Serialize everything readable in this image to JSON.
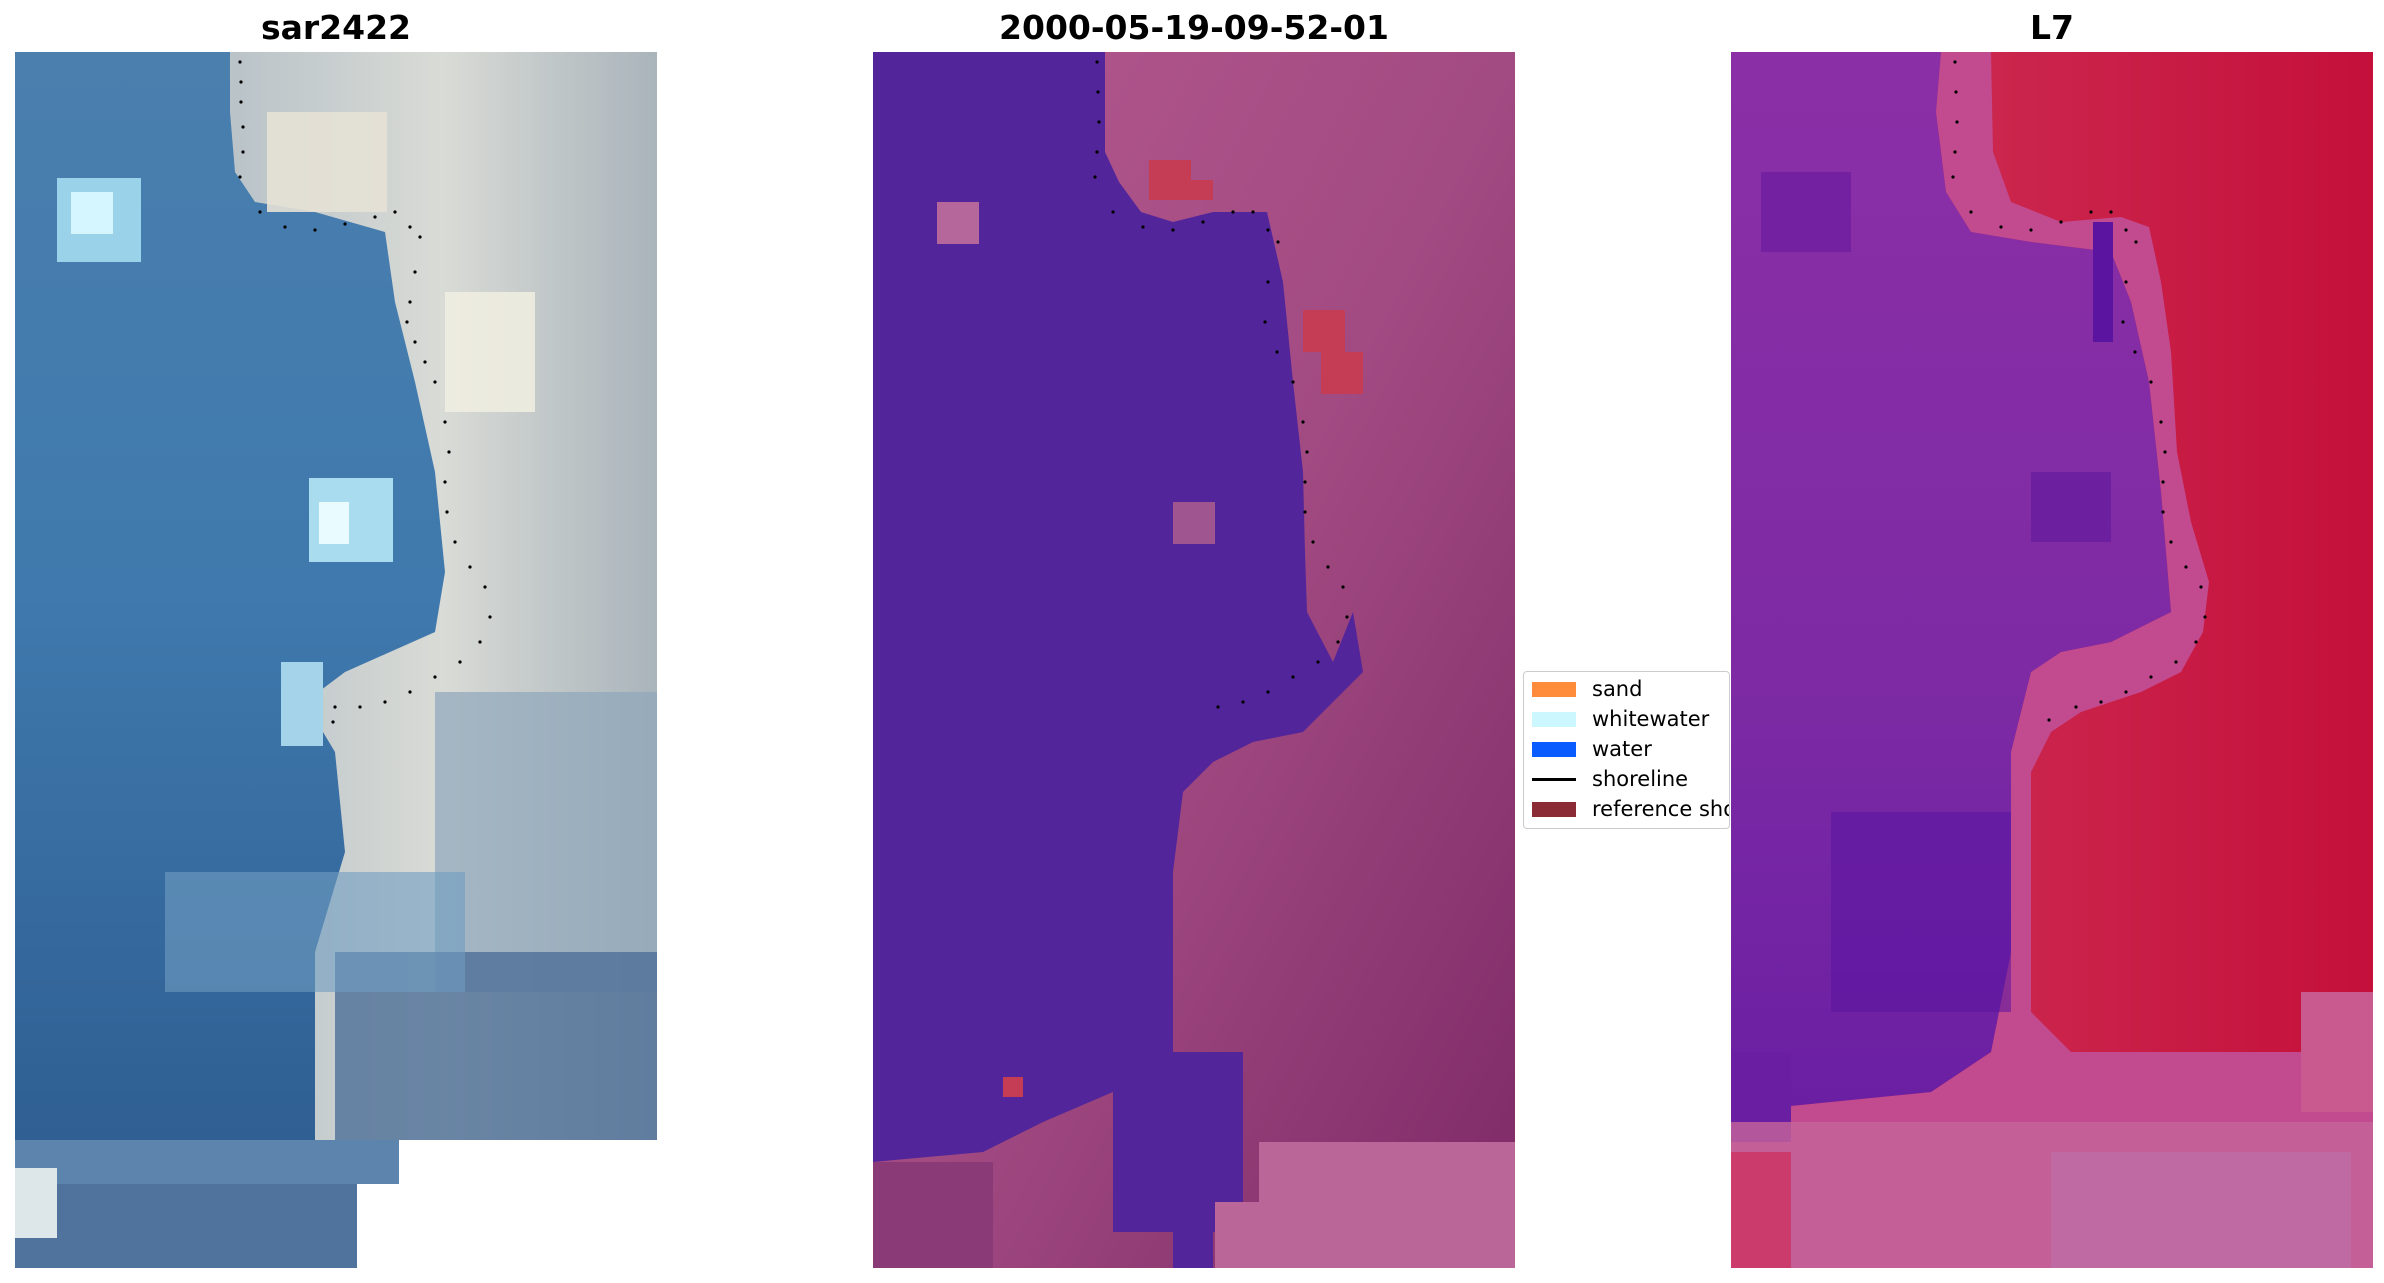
{
  "panels": [
    {
      "title": "sar2422",
      "image": "RGB satellite image of coastline"
    },
    {
      "title": "2000-05-19-09-52-01",
      "image": "classified image with water mask"
    },
    {
      "title": "L7",
      "image": "MNDWI index image"
    }
  ],
  "legend": {
    "items": [
      {
        "label": "sand",
        "kind": "patch",
        "color": "#ff8c3a"
      },
      {
        "label": "whitewater",
        "kind": "patch",
        "color": "#ccf7ff"
      },
      {
        "label": "water",
        "kind": "patch",
        "color": "#0a5cff"
      },
      {
        "label": "shoreline",
        "kind": "line",
        "color": "#000000"
      },
      {
        "label": "reference shoreline",
        "kind": "patch",
        "color": "#8b2b35"
      }
    ]
  },
  "colors": {
    "sea_blue": "#3f79ab",
    "sand_gray": "#c9ccd0",
    "water_mask_purple": "#53259a",
    "land_magenta": "#a24a82",
    "index_red": "#c8173f",
    "index_purple": "#8a34a8"
  }
}
